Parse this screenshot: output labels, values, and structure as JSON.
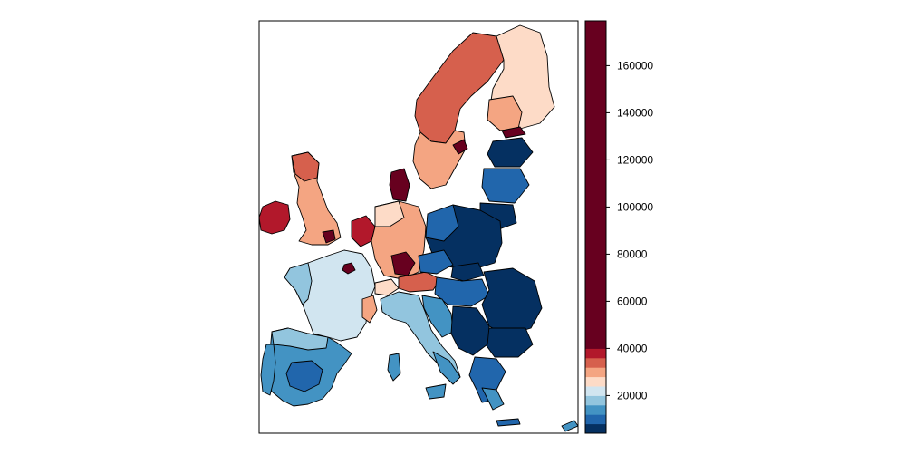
{
  "map": {
    "colors": {
      "darkest_blue": "#053061",
      "mid_blue": "#2166ac",
      "blue": "#4393c3",
      "light_blue": "#92c5de",
      "pale_blue": "#d1e5f0",
      "pale_red": "#fddbc7",
      "light_red": "#f4a582",
      "red": "#d6604d",
      "dark_red": "#b2182b",
      "darkest_red": "#67001f"
    }
  },
  "legend": {
    "type": "stepped color scale",
    "ticks": [
      "20000",
      "40000",
      "60000",
      "80000",
      "100000",
      "120000",
      "140000",
      "160000"
    ],
    "tick_values": [
      20000,
      40000,
      60000,
      80000,
      100000,
      120000,
      140000,
      160000
    ],
    "range": [
      4000,
      179000
    ],
    "bins": [
      {
        "from": 4000,
        "to": 8000,
        "color": "#053061"
      },
      {
        "from": 8000,
        "to": 12000,
        "color": "#2166ac"
      },
      {
        "from": 12000,
        "to": 16000,
        "color": "#4393c3"
      },
      {
        "from": 16000,
        "to": 20000,
        "color": "#92c5de"
      },
      {
        "from": 20000,
        "to": 24000,
        "color": "#d1e5f0"
      },
      {
        "from": 24000,
        "to": 28000,
        "color": "#fddbc7"
      },
      {
        "from": 28000,
        "to": 32000,
        "color": "#f4a582"
      },
      {
        "from": 32000,
        "to": 36000,
        "color": "#d6604d"
      },
      {
        "from": 36000,
        "to": 40000,
        "color": "#b2182b"
      },
      {
        "from": 40000,
        "to": 179000,
        "color": "#67001f"
      }
    ]
  }
}
